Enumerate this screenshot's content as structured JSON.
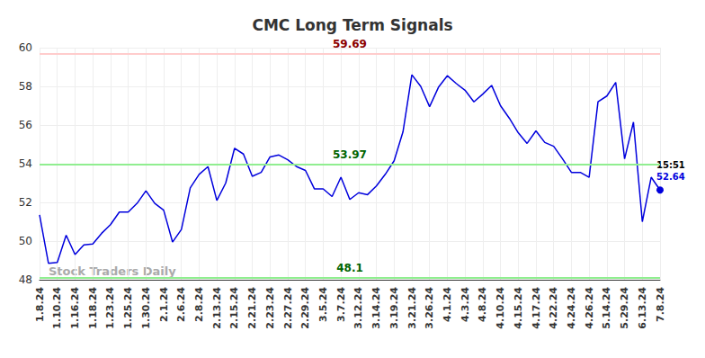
{
  "chart_data": {
    "type": "line",
    "title": "CMC Long Term Signals",
    "categories": [
      "1.8.24",
      null,
      "1.10.24",
      null,
      "1.16.24",
      null,
      "1.18.24",
      null,
      "1.23.24",
      null,
      "1.25.24",
      null,
      "1.30.24",
      null,
      "2.1.24",
      null,
      "2.6.24",
      null,
      "2.8.24",
      null,
      "2.13.24",
      null,
      "2.15.24",
      null,
      "2.21.24",
      null,
      "2.23.24",
      null,
      "2.27.24",
      null,
      "2.29.24",
      null,
      "3.5.24",
      null,
      "3.7.24",
      null,
      "3.12.24",
      null,
      "3.14.24",
      null,
      "3.19.24",
      null,
      "3.21.24",
      null,
      "3.26.24",
      null,
      "4.1.24",
      null,
      "4.3.24",
      null,
      "4.8.24",
      null,
      "4.10.24",
      null,
      "4.15.24",
      null,
      "4.17.24",
      null,
      "4.22.24",
      null,
      "4.24.24",
      null,
      "4.26.24",
      null,
      "5.14.24",
      null,
      "5.29.24",
      null,
      "6.13.24",
      null,
      "7.8.24"
    ],
    "values": [
      51.35,
      48.85,
      48.9,
      50.3,
      49.3,
      49.8,
      49.85,
      50.4,
      50.85,
      51.5,
      51.5,
      51.95,
      52.6,
      51.95,
      51.6,
      49.95,
      50.6,
      52.75,
      53.45,
      53.85,
      52.1,
      53.0,
      54.8,
      54.5,
      53.35,
      53.55,
      54.35,
      54.45,
      54.2,
      53.85,
      53.65,
      52.7,
      52.7,
      52.3,
      53.3,
      52.15,
      52.5,
      52.4,
      52.85,
      53.45,
      54.15,
      55.65,
      58.6,
      58.0,
      56.95,
      57.95,
      58.55,
      58.15,
      57.8,
      57.2,
      57.6,
      58.05,
      57.0,
      56.35,
      55.6,
      55.05,
      55.7,
      55.1,
      54.9,
      54.25,
      53.55,
      53.55,
      53.3,
      57.2,
      57.5,
      58.2,
      54.25,
      56.15,
      51.0,
      53.3,
      52.64
    ],
    "color": "#0000dd",
    "ylim": [
      48,
      60
    ],
    "yticks": [
      48,
      50,
      52,
      54,
      56,
      58,
      60
    ],
    "grid": true,
    "reference_lines": [
      {
        "value": 59.69,
        "color": "#ffcccc",
        "label_color": "#8b0000"
      },
      {
        "value": 53.97,
        "color": "#90ee90",
        "label_color": "#006400"
      },
      {
        "value": 48.1,
        "color": "#90ee90",
        "label_color": "#006400"
      }
    ],
    "last_point_time": "15:51",
    "watermark": "Stock Traders Daily"
  }
}
